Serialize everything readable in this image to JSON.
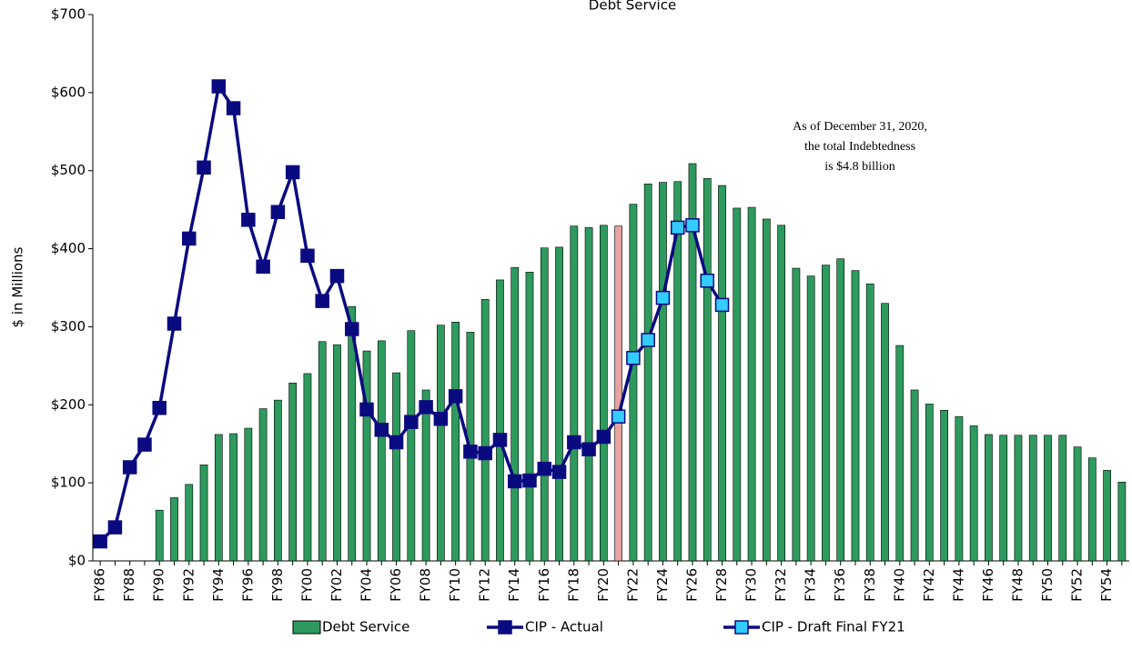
{
  "chart_data": {
    "type": "bar-line",
    "title": "Debt Service",
    "ylabel": "$ in Millions",
    "annotation": [
      "As of December 31, 2020,",
      "the total Indebtedness",
      "is $4.8 billion"
    ],
    "categories": [
      "FY86",
      null,
      "FY88",
      null,
      "FY90",
      null,
      "FY92",
      null,
      "FY94",
      null,
      "FY96",
      null,
      "FY98",
      null,
      "FY00",
      null,
      "FY02",
      null,
      "FY04",
      null,
      "FY06",
      null,
      "FY08",
      null,
      "FY10",
      null,
      "FY12",
      null,
      "FY14",
      null,
      "FY16",
      null,
      "FY18",
      null,
      "FY20",
      null,
      "FY22",
      null,
      "FY24",
      null,
      "FY26",
      null,
      "FY28",
      null,
      "FY30",
      null,
      "FY32",
      null,
      "FY34",
      null,
      "FY36",
      null,
      "FY38",
      null,
      "FY40",
      null,
      "FY42",
      null,
      "FY44",
      null,
      "FY46",
      null,
      "FY48",
      null,
      "FY50",
      null,
      "FY52",
      null,
      "FY54",
      null
    ],
    "ylim": [
      0,
      700
    ],
    "yticks": [
      {
        "value": 0,
        "label": "$0"
      },
      {
        "value": 100,
        "label": "$100"
      },
      {
        "value": 200,
        "label": "$200"
      },
      {
        "value": 300,
        "label": "$300"
      },
      {
        "value": 400,
        "label": "$400"
      },
      {
        "value": 500,
        "label": "$500"
      },
      {
        "value": 600,
        "label": "$600"
      },
      {
        "value": 700,
        "label": "$700"
      }
    ],
    "highlight": {
      "index": 35,
      "color": "#e6a3a0"
    },
    "series": [
      {
        "name": "Debt Service",
        "kind": "bar",
        "color": "#2e9a5e",
        "values": [
          null,
          null,
          null,
          null,
          65,
          81,
          98,
          123,
          162,
          163,
          170,
          195,
          206,
          228,
          240,
          281,
          277,
          326,
          269,
          282,
          241,
          295,
          219,
          302,
          306,
          293,
          335,
          360,
          376,
          370,
          401,
          402,
          429,
          427,
          430,
          429,
          457,
          483,
          485,
          486,
          509,
          490,
          481,
          452,
          453,
          438,
          430,
          375,
          365,
          379,
          387,
          372,
          355,
          330,
          276,
          219,
          201,
          193,
          185,
          173,
          162,
          161,
          161,
          161,
          161,
          161,
          146,
          132,
          116,
          101
        ]
      },
      {
        "name": "CIP - Actual",
        "kind": "line",
        "color": "#0a0a80",
        "marker_color": "#0a0a80",
        "values": [
          25,
          43,
          120,
          149,
          196,
          304,
          413,
          504,
          608,
          580,
          437,
          377,
          447,
          498,
          391,
          333,
          365,
          297,
          194,
          168,
          152,
          178,
          197,
          182,
          211,
          140,
          138,
          155,
          102,
          103,
          118,
          114,
          152,
          143,
          159,
          null,
          null,
          null,
          null,
          null,
          null,
          null,
          null,
          null,
          null,
          null,
          null,
          null,
          null,
          null,
          null,
          null,
          null,
          null,
          null,
          null,
          null,
          null,
          null,
          null,
          null,
          null,
          null,
          null,
          null,
          null,
          null,
          null,
          null,
          null
        ]
      },
      {
        "name": "CIP - Draft Final FY21",
        "kind": "line",
        "color": "#0a0a80",
        "marker_color": "#33ccff",
        "values": [
          null,
          null,
          null,
          null,
          null,
          null,
          null,
          null,
          null,
          null,
          null,
          null,
          null,
          null,
          null,
          null,
          null,
          null,
          null,
          null,
          null,
          null,
          null,
          null,
          null,
          null,
          null,
          null,
          null,
          null,
          null,
          null,
          null,
          null,
          null,
          185,
          260,
          283,
          337,
          427,
          430,
          359,
          328,
          null,
          null,
          null,
          null,
          null,
          null,
          null,
          null,
          null,
          null,
          null,
          null,
          null,
          null,
          null,
          null,
          null,
          null,
          null,
          null,
          null,
          null,
          null,
          null,
          null,
          null,
          null
        ]
      }
    ]
  }
}
